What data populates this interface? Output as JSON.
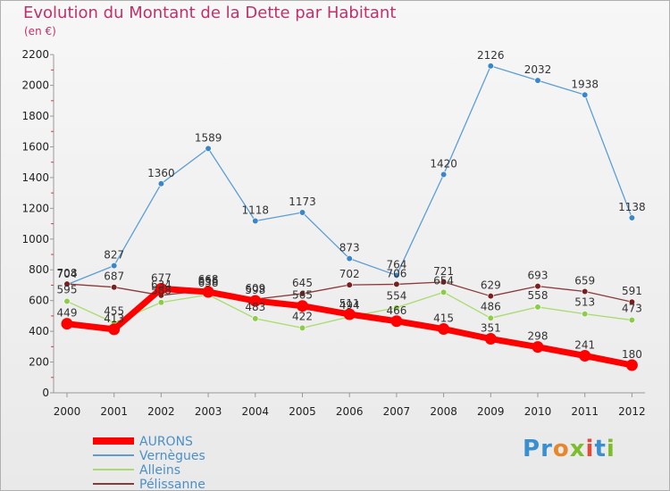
{
  "title": "Evolution du Montant de la Dette par Habitant",
  "unit_label": "(en €)",
  "logo": {
    "letters": [
      {
        "ch": "P",
        "color": "#3a8fd0"
      },
      {
        "ch": "r",
        "color": "#3a8fd0"
      },
      {
        "ch": "o",
        "color": "#e8862a"
      },
      {
        "ch": "x",
        "color": "#7cbd2b"
      },
      {
        "ch": "i",
        "color": "#e34a3a"
      },
      {
        "ch": "t",
        "color": "#3a8fd0"
      },
      {
        "ch": "i",
        "color": "#7cbd2b"
      }
    ]
  },
  "chart_data": {
    "type": "line",
    "x": [
      "2000",
      "2001",
      "2002",
      "2003",
      "2004",
      "2005",
      "2006",
      "2007",
      "2008",
      "2009",
      "2010",
      "2011",
      "2012"
    ],
    "ylim": [
      0,
      2200
    ],
    "yticks": [
      0,
      200,
      400,
      600,
      800,
      1000,
      1200,
      1400,
      1600,
      1800,
      2000,
      2200
    ],
    "grid": false,
    "legend": "bottom-left",
    "series": [
      {
        "name": "Vernègues",
        "color": "#5b9ed6",
        "marker": "#3a86c8",
        "values": [
          704,
          827,
          1360,
          1589,
          1118,
          1173,
          873,
          764,
          1420,
          2126,
          2032,
          1938,
          1138
        ]
      },
      {
        "name": "Alleins",
        "color": "#a8dc6c",
        "marker": "#8ccc48",
        "values": [
          595,
          455,
          588,
          638,
          483,
          422,
          494,
          554,
          654,
          486,
          558,
          513,
          473
        ]
      },
      {
        "name": "Pélissanne",
        "color": "#8b3a3a",
        "marker": "#7a1e1e",
        "values": [
          708,
          687,
          634,
          668,
          609,
          645,
          702,
          706,
          721,
          629,
          693,
          659,
          591
        ]
      },
      {
        "name": "AURONS",
        "color": "#ff0000",
        "marker": "#ff0000",
        "values": [
          449,
          413,
          677,
          656,
          598,
          565,
          511,
          466,
          415,
          351,
          298,
          241,
          180
        ]
      }
    ]
  }
}
